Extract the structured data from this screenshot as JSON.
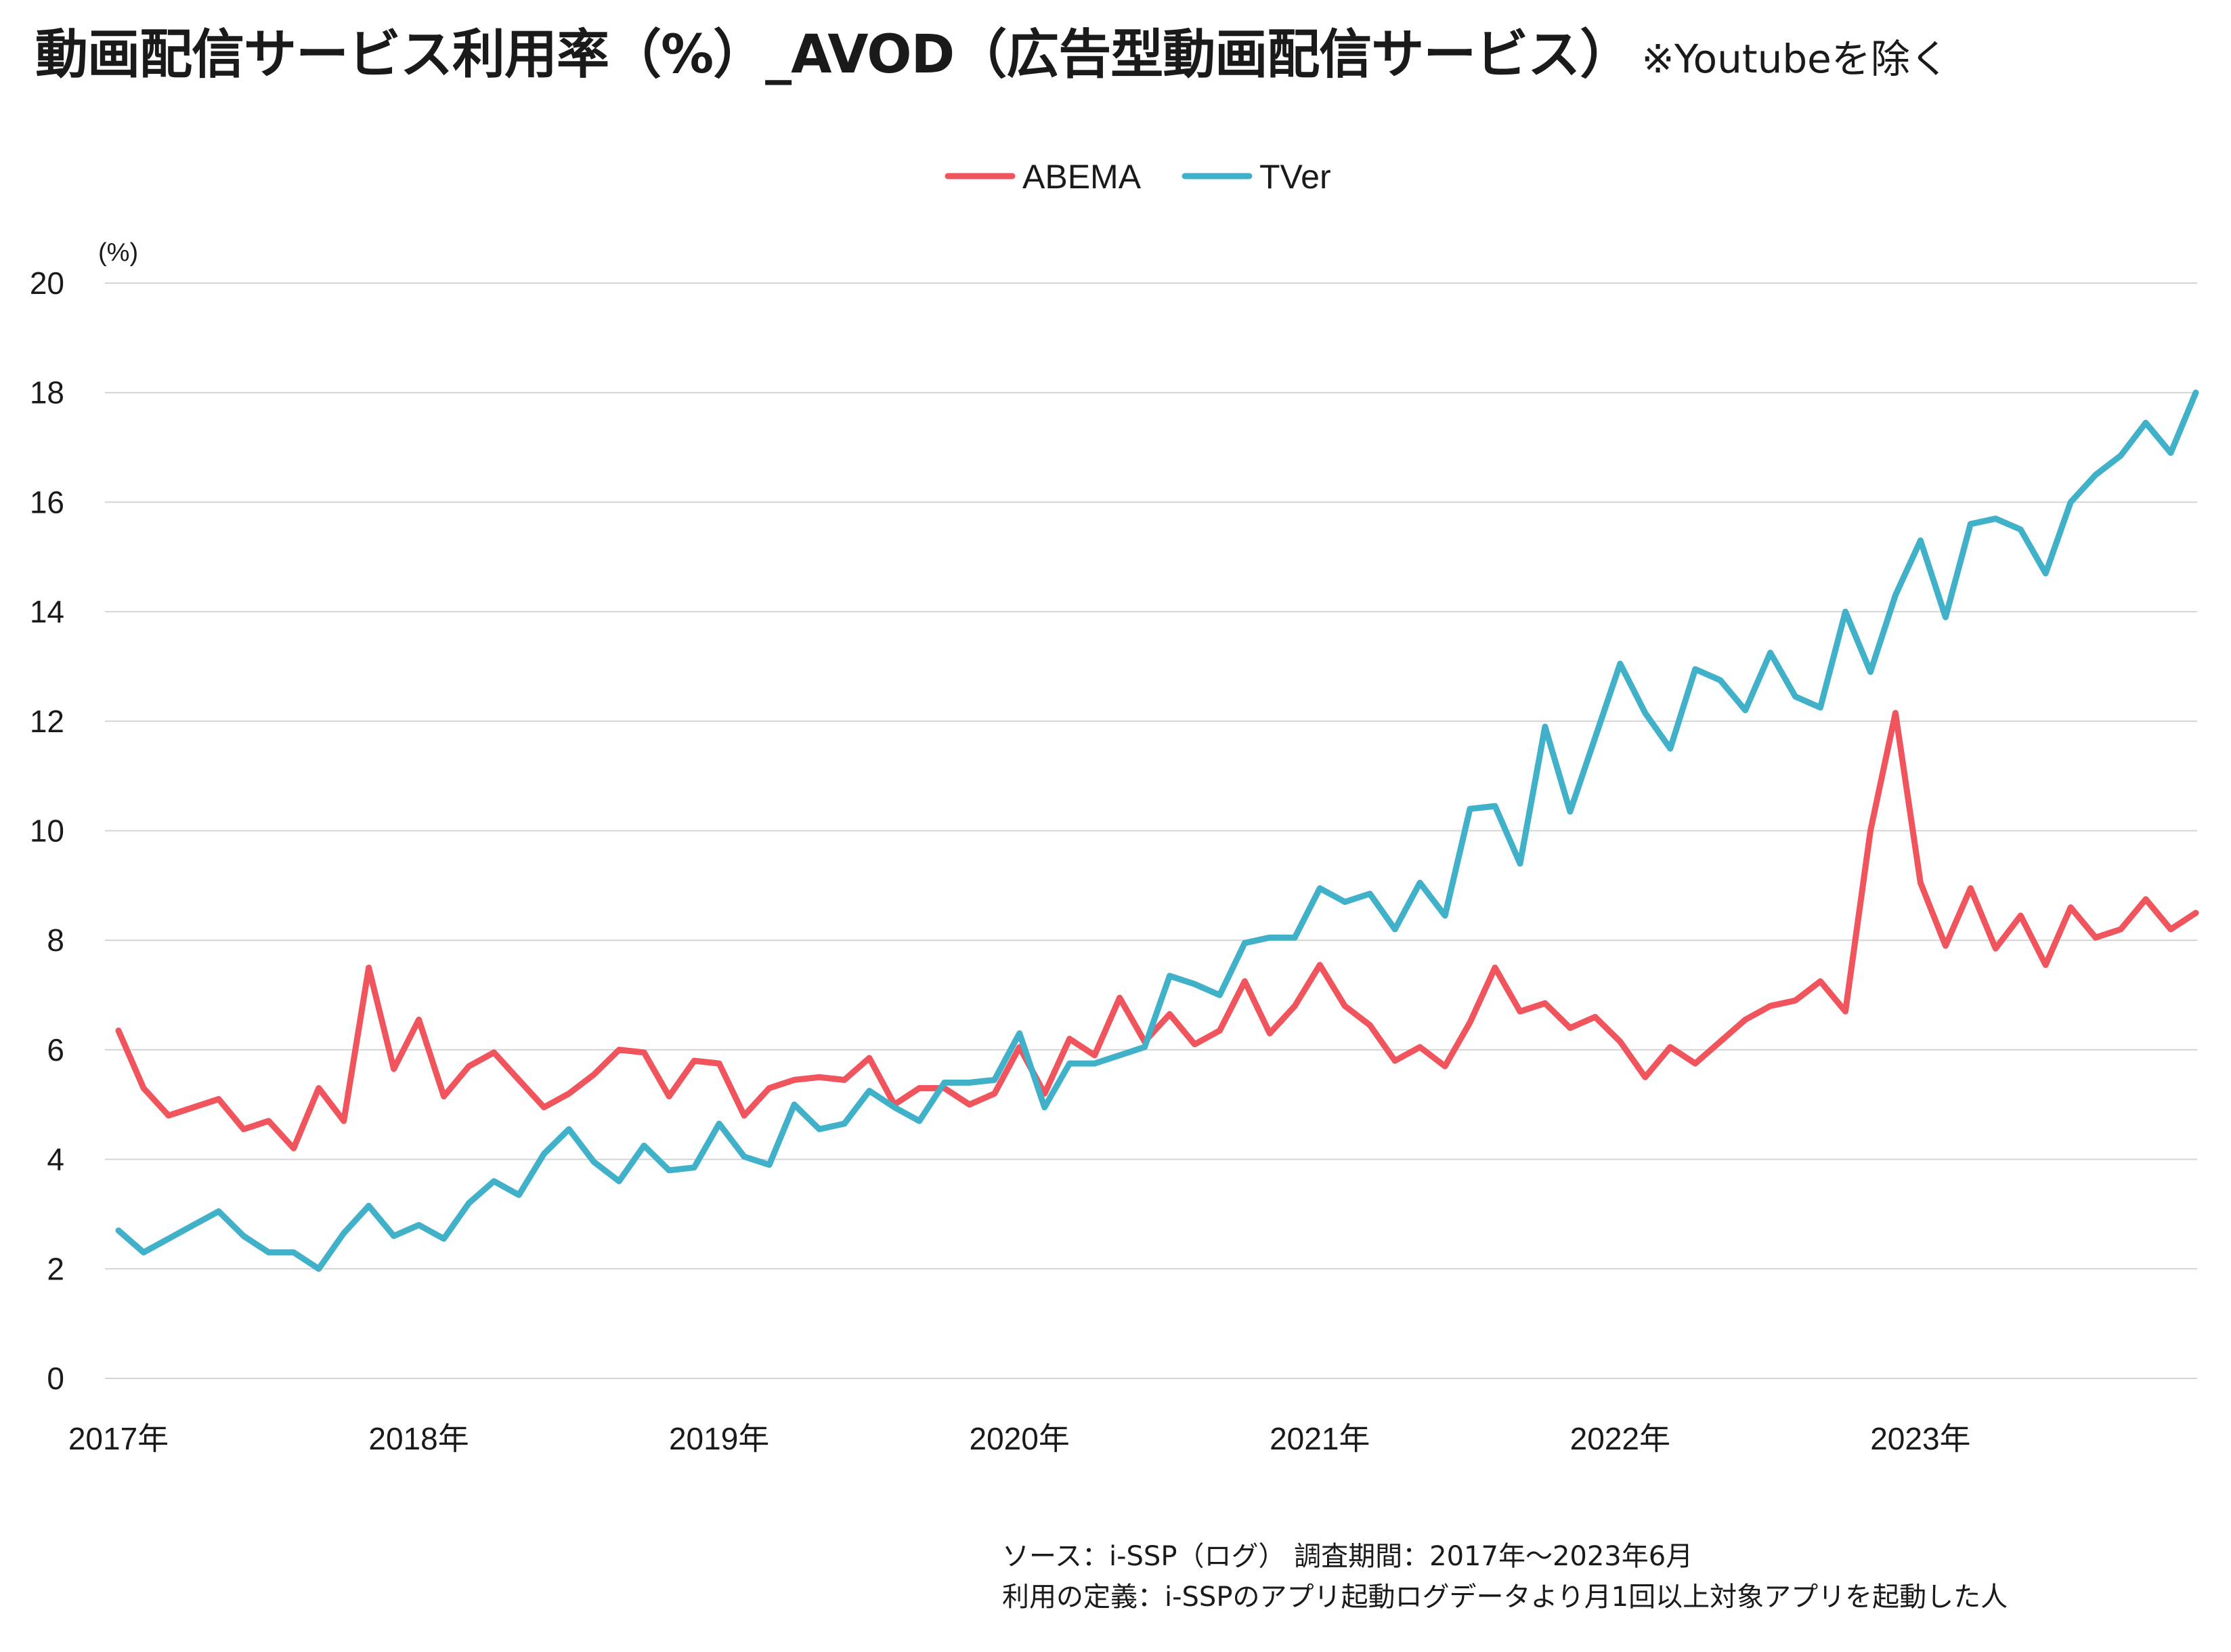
{
  "title": {
    "main": "動画配信サービス利用率（%）_AVOD（広告型動画配信サービス）",
    "note": "※Youtubeを除く"
  },
  "footnote": {
    "line1": "ソース：i-SSP（ログ） 調査期間：2017年～2023年6月",
    "line2": "利用の定義：i-SSPのアプリ起動ログデータより月1回以上対象アプリを起動した人"
  },
  "chart_data": {
    "type": "line",
    "ylabel": "(%)",
    "ylim": [
      0,
      20
    ],
    "yticks": [
      0,
      2,
      4,
      6,
      8,
      10,
      12,
      14,
      16,
      18,
      20
    ],
    "x_tick_labels": [
      "2017年",
      "2018年",
      "2019年",
      "2020年",
      "2021年",
      "2022年",
      "2023年"
    ],
    "grid": true,
    "legend_position": "top-center",
    "series": [
      {
        "name": "ABEMA",
        "color": "#f0545c",
        "values": [
          6.35,
          5.3,
          4.8,
          4.95,
          5.1,
          4.55,
          4.7,
          4.2,
          5.3,
          4.7,
          7.5,
          5.65,
          6.55,
          5.15,
          5.7,
          5.95,
          5.45,
          4.95,
          5.2,
          5.55,
          6.0,
          5.95,
          5.15,
          5.8,
          5.75,
          4.8,
          5.3,
          5.45,
          5.5,
          5.45,
          5.85,
          5.0,
          5.3,
          5.3,
          5.0,
          5.2,
          6.05,
          5.2,
          6.2,
          5.9,
          6.95,
          6.15,
          6.65,
          6.1,
          6.35,
          7.25,
          6.3,
          6.8,
          7.55,
          6.8,
          6.45,
          5.8,
          6.05,
          5.7,
          6.5,
          7.5,
          6.7,
          6.85,
          6.4,
          6.6,
          6.15,
          5.5,
          6.05,
          5.75,
          6.15,
          6.55,
          6.8,
          6.9,
          7.25,
          6.7,
          10.0,
          12.15,
          9.05,
          7.9,
          8.95,
          7.85,
          8.45,
          7.55,
          8.6,
          8.05,
          8.2,
          8.75,
          8.2,
          8.5
        ]
      },
      {
        "name": "TVer",
        "color": "#40b1c8",
        "values": [
          2.7,
          2.3,
          2.55,
          2.8,
          3.05,
          2.6,
          2.3,
          2.3,
          2.0,
          2.65,
          3.15,
          2.6,
          2.8,
          2.55,
          3.2,
          3.6,
          3.35,
          4.1,
          4.55,
          3.95,
          3.6,
          4.25,
          3.8,
          3.85,
          4.65,
          4.05,
          3.9,
          5.0,
          4.55,
          4.65,
          5.25,
          4.95,
          4.7,
          5.4,
          5.4,
          5.45,
          6.3,
          4.95,
          5.75,
          5.75,
          5.9,
          6.05,
          7.35,
          7.2,
          7.0,
          7.95,
          8.05,
          8.05,
          8.95,
          8.7,
          8.85,
          8.2,
          9.05,
          8.45,
          10.4,
          10.45,
          9.4,
          11.9,
          10.35,
          11.7,
          13.05,
          12.15,
          11.5,
          12.95,
          12.75,
          12.2,
          13.25,
          12.45,
          12.25,
          14.0,
          12.9,
          14.3,
          15.3,
          13.9,
          15.6,
          15.7,
          15.5,
          14.7,
          16.0,
          16.5,
          16.85,
          17.45,
          16.9,
          18.0
        ]
      }
    ]
  }
}
